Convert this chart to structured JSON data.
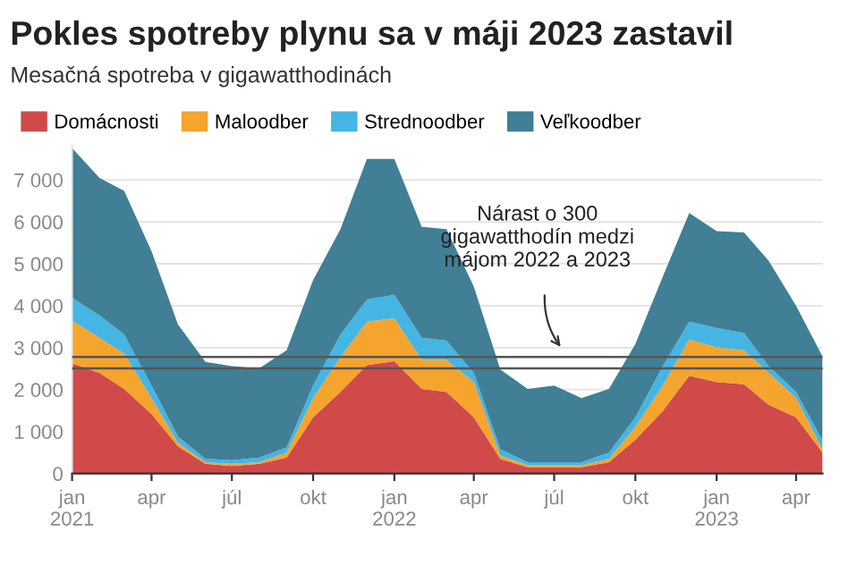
{
  "chart_data": {
    "type": "area",
    "stacked": true,
    "title": "Pokles spotreby plynu sa v máji 2023 zastavil",
    "subtitle": "Mesačná spotreba v gigawatthodinách",
    "x": [
      "2021-01",
      "2021-02",
      "2021-03",
      "2021-04",
      "2021-05",
      "2021-06",
      "2021-07",
      "2021-08",
      "2021-09",
      "2021-10",
      "2021-11",
      "2021-12",
      "2022-01",
      "2022-02",
      "2022-03",
      "2022-04",
      "2022-05",
      "2022-06",
      "2022-07",
      "2022-08",
      "2022-09",
      "2022-10",
      "2022-11",
      "2022-12",
      "2023-01",
      "2023-02",
      "2023-03",
      "2023-04",
      "2023-05"
    ],
    "series": [
      {
        "name": "Domácnosti",
        "color": "#d04a4a",
        "values": [
          2630,
          2400,
          2020,
          1420,
          650,
          230,
          180,
          230,
          380,
          1340,
          1950,
          2590,
          2680,
          2020,
          1950,
          1340,
          350,
          150,
          150,
          150,
          270,
          810,
          1490,
          2330,
          2180,
          2130,
          1640,
          1340,
          500
        ]
      },
      {
        "name": "Maloodber",
        "color": "#f5a42e",
        "values": [
          1020,
          840,
          840,
          380,
          80,
          40,
          50,
          40,
          120,
          460,
          830,
          1030,
          1020,
          690,
          760,
          840,
          80,
          50,
          50,
          50,
          80,
          300,
          610,
          870,
          830,
          810,
          760,
          460,
          80
        ]
      },
      {
        "name": "Strednoodber",
        "color": "#45b5e3",
        "values": [
          540,
          530,
          460,
          300,
          150,
          80,
          90,
          110,
          120,
          300,
          540,
          530,
          560,
          530,
          460,
          220,
          150,
          70,
          70,
          70,
          150,
          230,
          460,
          420,
          460,
          410,
          160,
          150,
          200
        ]
      },
      {
        "name": "Veľkoodber",
        "color": "#407f95",
        "values": [
          3570,
          3280,
          3420,
          3200,
          2670,
          2310,
          2240,
          2130,
          2320,
          2510,
          2510,
          3350,
          3240,
          2640,
          2660,
          2060,
          1900,
          1750,
          1830,
          1530,
          1520,
          1750,
          2130,
          2590,
          2310,
          2400,
          2510,
          2050,
          2010
        ]
      }
    ],
    "xlim": [
      "2021-01",
      "2023-05"
    ],
    "xticks": [
      {
        "value": "2021-01",
        "label": "jan\n2021"
      },
      {
        "value": "2021-04",
        "label": "apr"
      },
      {
        "value": "2021-07",
        "label": "júl"
      },
      {
        "value": "2021-10",
        "label": "okt"
      },
      {
        "value": "2022-01",
        "label": "jan\n2022"
      },
      {
        "value": "2022-04",
        "label": "apr"
      },
      {
        "value": "2022-07",
        "label": "júl"
      },
      {
        "value": "2022-10",
        "label": "okt"
      },
      {
        "value": "2023-01",
        "label": "jan\n2023"
      },
      {
        "value": "2023-04",
        "label": "apr"
      }
    ],
    "ylim": [
      0,
      7800
    ],
    "yticks": [
      0,
      {
        "value": 1000,
        "label": "1 000"
      },
      {
        "value": 2000,
        "label": "2 000"
      },
      {
        "value": 3000,
        "label": "3 000"
      },
      {
        "value": 4000,
        "label": "4 000"
      },
      {
        "value": 5000,
        "label": "5 000"
      },
      {
        "value": 6000,
        "label": "6 000"
      },
      {
        "value": 7000,
        "label": "7 000"
      }
    ],
    "grid": "y",
    "legend": "top left",
    "ref_lines": [
      {
        "axis": "y",
        "value": 2780,
        "color": "#555555"
      },
      {
        "axis": "y",
        "value": 2510,
        "color": "#555555"
      }
    ],
    "annotations": [
      "Nárast o 300\ngigawatthodín medzi\nmájom 2022 a 2023"
    ]
  }
}
